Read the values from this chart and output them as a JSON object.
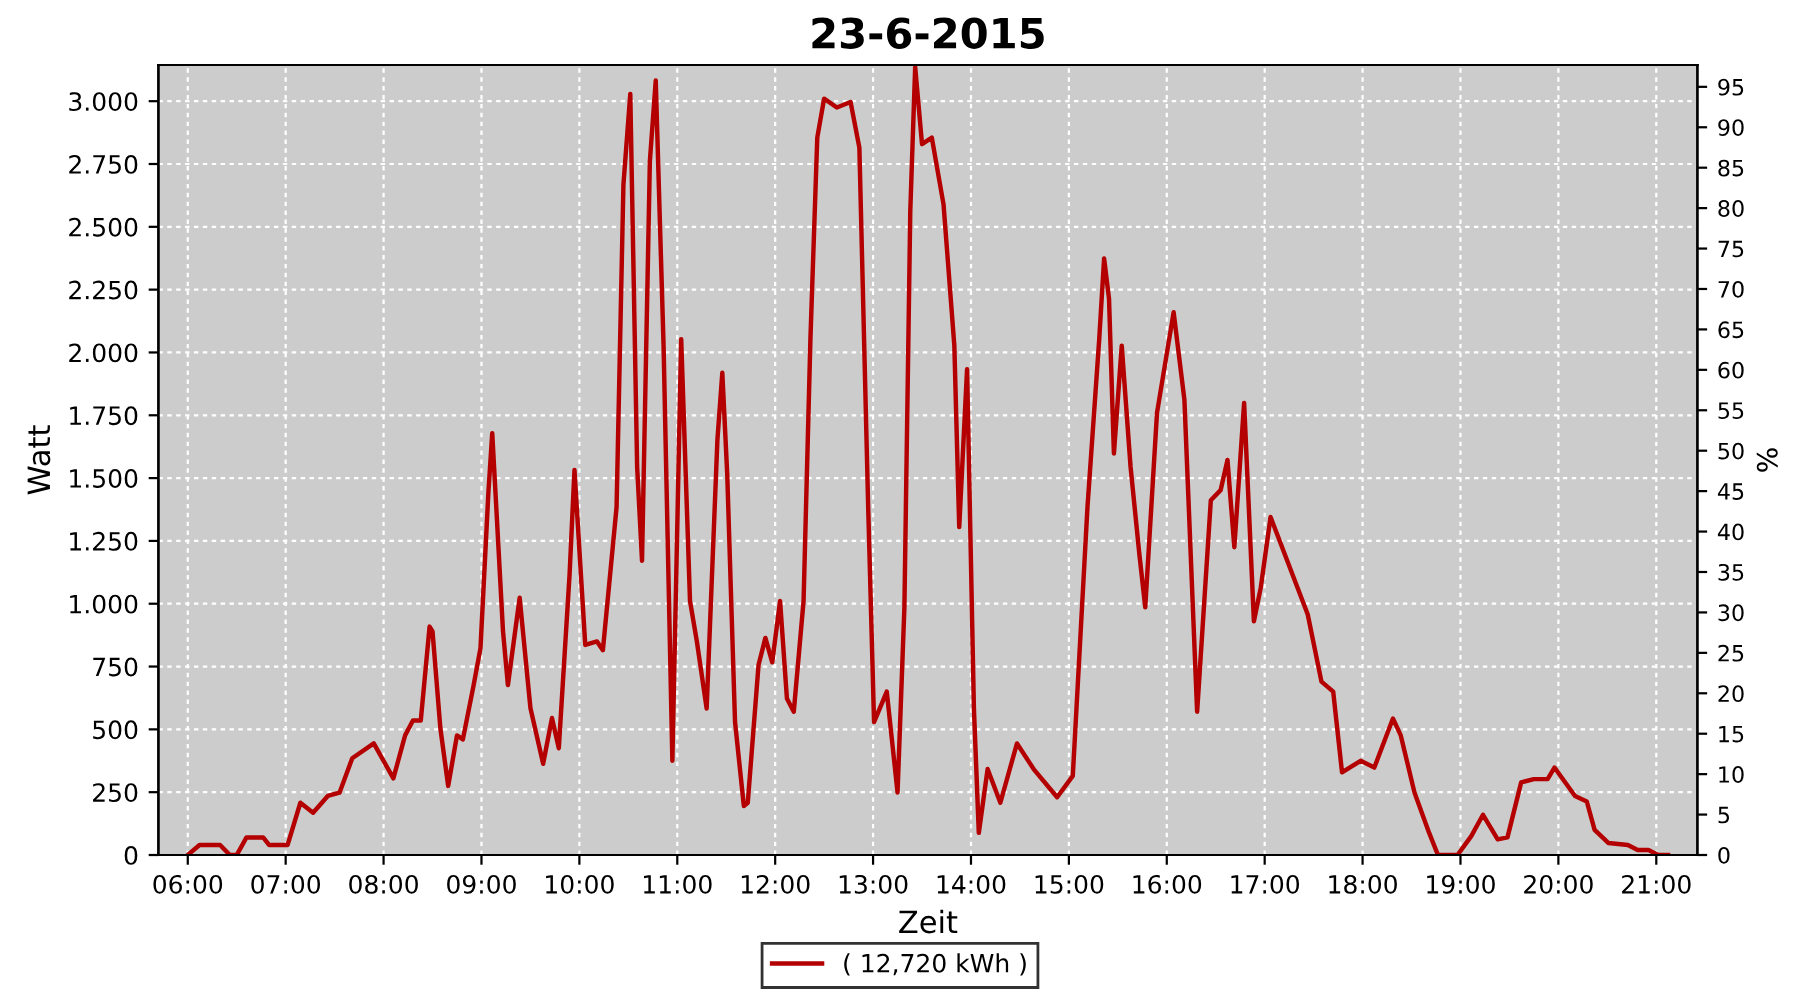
{
  "chart_data": {
    "type": "line",
    "title": "23-6-2015",
    "xlabel": "Zeit",
    "ylabel": "Watt",
    "y2label": "%",
    "xlim": [
      5.7,
      21.42
    ],
    "ylim": [
      0,
      3144
    ],
    "y2lim": [
      0,
      97.7
    ],
    "xticks": [
      {
        "value": 6,
        "label": "06:00"
      },
      {
        "value": 7,
        "label": "07:00"
      },
      {
        "value": 8,
        "label": "08:00"
      },
      {
        "value": 9,
        "label": "09:00"
      },
      {
        "value": 10,
        "label": "10:00"
      },
      {
        "value": 11,
        "label": "11:00"
      },
      {
        "value": 12,
        "label": "12:00"
      },
      {
        "value": 13,
        "label": "13:00"
      },
      {
        "value": 14,
        "label": "14:00"
      },
      {
        "value": 15,
        "label": "15:00"
      },
      {
        "value": 16,
        "label": "16:00"
      },
      {
        "value": 17,
        "label": "17:00"
      },
      {
        "value": 18,
        "label": "18:00"
      },
      {
        "value": 19,
        "label": "19:00"
      },
      {
        "value": 20,
        "label": "20:00"
      },
      {
        "value": 21,
        "label": "21:00"
      }
    ],
    "yticks": [
      0,
      250,
      500,
      750,
      {
        "value": 1000,
        "label": "1.000"
      },
      {
        "value": 1250,
        "label": "1.250"
      },
      {
        "value": 1500,
        "label": "1.500"
      },
      {
        "value": 1750,
        "label": "1.750"
      },
      {
        "value": 2000,
        "label": "2.000"
      },
      {
        "value": 2250,
        "label": "2.250"
      },
      {
        "value": 2500,
        "label": "2.500"
      },
      {
        "value": 2750,
        "label": "2.750"
      },
      {
        "value": 3000,
        "label": "3.000"
      }
    ],
    "y2ticks": [
      0,
      5,
      10,
      15,
      20,
      25,
      30,
      35,
      40,
      45,
      50,
      55,
      60,
      65,
      70,
      75,
      80,
      85,
      90,
      95
    ],
    "grid": true,
    "legend": "bottom",
    "marker": "none",
    "line_style": "solid",
    "series": [
      {
        "name": "( 12,720 kWh )",
        "color": "#b40000",
        "x": [
          6.0,
          6.12,
          6.33,
          6.43,
          6.5,
          6.6,
          6.77,
          6.83,
          7.02,
          7.15,
          7.28,
          7.43,
          7.55,
          7.68,
          7.9,
          8.1,
          8.22,
          8.3,
          8.38,
          8.47,
          8.5,
          8.58,
          8.66,
          8.75,
          8.81,
          8.92,
          8.99,
          9.07,
          9.11,
          9.22,
          9.27,
          9.39,
          9.5,
          9.63,
          9.72,
          9.79,
          9.9,
          9.95,
          10.06,
          10.18,
          10.24,
          10.38,
          10.45,
          10.52,
          10.59,
          10.64,
          10.72,
          10.78,
          10.86,
          10.95,
          11.04,
          11.13,
          11.2,
          11.3,
          11.41,
          11.46,
          11.51,
          11.59,
          11.68,
          11.72,
          11.83,
          11.9,
          11.97,
          12.05,
          12.12,
          12.19,
          12.29,
          12.36,
          12.43,
          12.5,
          12.63,
          12.77,
          12.86,
          12.95,
          13.01,
          13.14,
          13.25,
          13.32,
          13.38,
          13.43,
          13.5,
          13.6,
          13.72,
          13.83,
          13.88,
          13.96,
          14.03,
          14.08,
          14.17,
          14.3,
          14.47,
          14.64,
          14.88,
          15.04,
          15.19,
          15.31,
          15.36,
          15.41,
          15.46,
          15.54,
          15.63,
          15.72,
          15.78,
          15.9,
          16.07,
          16.18,
          16.31,
          16.45,
          16.55,
          16.62,
          16.69,
          16.79,
          16.89,
          16.96,
          17.06,
          17.44,
          17.58,
          17.7,
          17.79,
          17.98,
          18.12,
          18.31,
          18.39,
          18.53,
          18.68,
          18.77,
          18.97,
          19.11,
          19.23,
          19.38,
          19.48,
          19.62,
          19.75,
          19.89,
          19.96,
          20.17,
          20.29,
          20.37,
          20.51,
          20.71,
          20.81,
          20.92,
          21.02,
          21.12
        ],
        "values": [
          0,
          40,
          40,
          0,
          0,
          70,
          70,
          40,
          40,
          208,
          168,
          235,
          248,
          385,
          444,
          305,
          476,
          535,
          535,
          909,
          890,
          505,
          275,
          476,
          460,
          676,
          823,
          1438,
          1679,
          890,
          676,
          1024,
          585,
          363,
          545,
          425,
          1117,
          1532,
          836,
          850,
          815,
          1385,
          2668,
          3029,
          1545,
          1171,
          2761,
          3082,
          2027,
          375,
          2053,
          1011,
          850,
          583,
          1652,
          1919,
          1518,
          529,
          195,
          208,
          756,
          864,
          767,
          1011,
          623,
          570,
          1011,
          2053,
          2855,
          3010,
          2975,
          2997,
          2815,
          1385,
          529,
          650,
          249,
          986,
          2561,
          3136,
          2829,
          2855,
          2588,
          2027,
          1305,
          1933,
          583,
          88,
          342,
          208,
          444,
          342,
          230,
          315,
          1385,
          2053,
          2374,
          2214,
          1598,
          2027,
          1545,
          1197,
          986,
          1759,
          2160,
          1812,
          570,
          1412,
          1452,
          1572,
          1225,
          1799,
          930,
          1064,
          1345,
          957,
          690,
          650,
          329,
          375,
          348,
          543,
          476,
          249,
          88,
          0,
          0,
          75,
          160,
          62,
          70,
          289,
          302,
          302,
          348,
          235,
          213,
          100,
          48,
          40,
          20,
          20,
          0,
          0
        ]
      }
    ]
  }
}
